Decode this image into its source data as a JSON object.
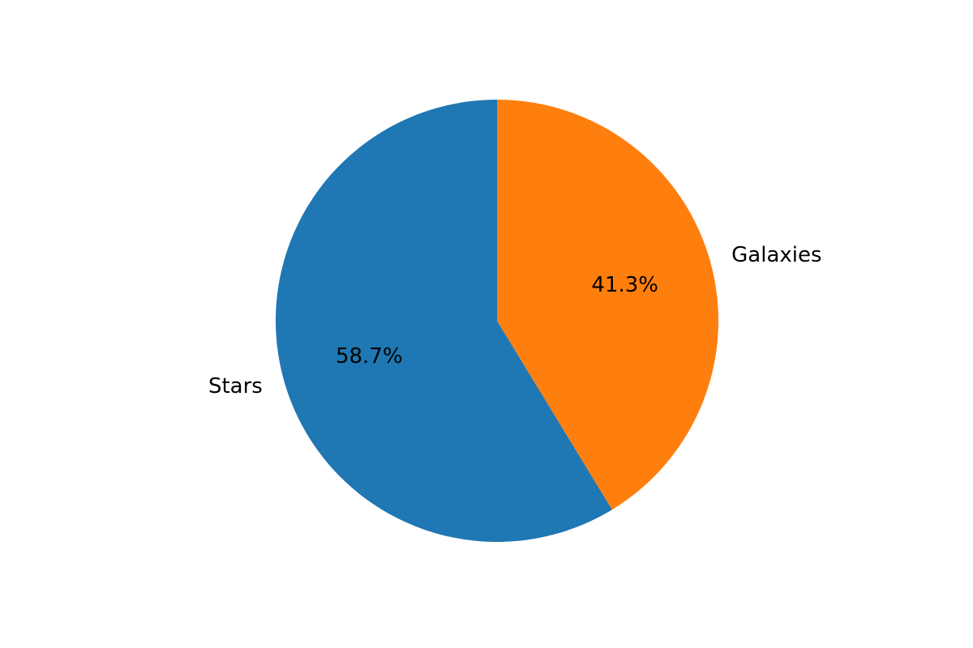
{
  "chart_data": {
    "type": "pie",
    "categories": [
      "Stars",
      "Galaxies"
    ],
    "values": [
      58.7,
      41.3
    ],
    "percent_labels": [
      "58.7%",
      "41.3%"
    ],
    "colors": [
      "#1f77b4",
      "#ff7f0e"
    ],
    "start_angle_deg": 90,
    "direction": "counterclockwise",
    "title": ""
  }
}
